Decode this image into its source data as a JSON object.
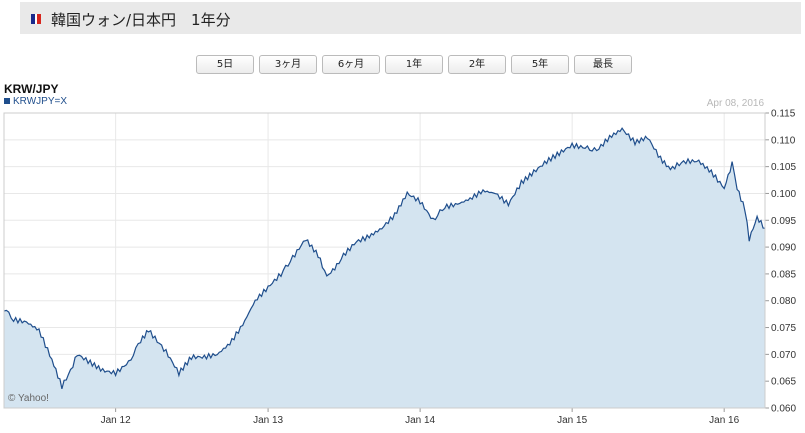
{
  "header": {
    "title": "韓国ウォン/日本円　1年分",
    "flag_colors": [
      "#1a2a8c",
      "#ffffff",
      "#d7261e"
    ]
  },
  "range_buttons": [
    "5日",
    "3ヶ月",
    "6ヶ月",
    "1年",
    "2年",
    "5年",
    "最長"
  ],
  "symbol": "KRW/JPY",
  "legend_label": "KRWJPY=X",
  "date_label": "Apr 08, 2016",
  "credit": "© Yahoo!",
  "colors": {
    "line": "#1f4e8c",
    "fill": "#d4e4f0",
    "grid": "#e8e8e8",
    "axis_text": "#333333"
  },
  "chart_data": {
    "type": "area",
    "title": "",
    "xlabel": "",
    "ylabel": "",
    "ylim": [
      0.06,
      0.115
    ],
    "y_ticks": [
      "0.060",
      "0.065",
      "0.070",
      "0.075",
      "0.080",
      "0.085",
      "0.090",
      "0.095",
      "0.100",
      "0.105",
      "0.110",
      "0.115"
    ],
    "x_ticks": [
      "Jan 12",
      "Jan 13",
      "Jan 14",
      "Jan 15",
      "Jan 16"
    ],
    "x_range": [
      "2011-04-08",
      "2016-04-08"
    ],
    "grid": true,
    "series": [
      {
        "name": "KRWJPY=X",
        "x": [
          "2011-04-08",
          "2011-05-01",
          "2011-06-01",
          "2011-07-01",
          "2011-08-01",
          "2011-08-25",
          "2011-09-15",
          "2011-10-01",
          "2011-11-01",
          "2011-12-01",
          "2012-01-01",
          "2012-02-01",
          "2012-03-01",
          "2012-03-20",
          "2012-04-15",
          "2012-05-01",
          "2012-06-01",
          "2012-07-01",
          "2012-08-01",
          "2012-09-01",
          "2012-10-01",
          "2012-11-01",
          "2012-12-01",
          "2013-01-01",
          "2013-02-01",
          "2013-03-01",
          "2013-04-01",
          "2013-05-01",
          "2013-05-22",
          "2013-06-15",
          "2013-07-01",
          "2013-08-01",
          "2013-09-01",
          "2013-10-01",
          "2013-11-01",
          "2013-12-01",
          "2014-01-01",
          "2014-02-01",
          "2014-03-01",
          "2014-04-01",
          "2014-05-01",
          "2014-06-01",
          "2014-07-01",
          "2014-08-01",
          "2014-09-01",
          "2014-10-01",
          "2014-11-01",
          "2014-12-01",
          "2015-01-01",
          "2015-02-01",
          "2015-03-01",
          "2015-04-01",
          "2015-05-01",
          "2015-06-01",
          "2015-07-01",
          "2015-08-01",
          "2015-08-25",
          "2015-09-15",
          "2015-10-01",
          "2015-11-01",
          "2015-12-01",
          "2016-01-01",
          "2016-01-20",
          "2016-02-01",
          "2016-02-20",
          "2016-03-01",
          "2016-03-20",
          "2016-04-08"
        ],
        "values": [
          0.0785,
          0.0765,
          0.076,
          0.0745,
          0.069,
          0.064,
          0.067,
          0.07,
          0.0685,
          0.067,
          0.0665,
          0.0685,
          0.0725,
          0.0745,
          0.072,
          0.0705,
          0.0665,
          0.0695,
          0.0695,
          0.07,
          0.072,
          0.0755,
          0.08,
          0.0825,
          0.085,
          0.088,
          0.0915,
          0.0885,
          0.0845,
          0.0865,
          0.0885,
          0.091,
          0.092,
          0.0935,
          0.096,
          0.1,
          0.0985,
          0.095,
          0.0975,
          0.098,
          0.099,
          0.1005,
          0.1,
          0.098,
          0.102,
          0.104,
          0.106,
          0.1075,
          0.109,
          0.1085,
          0.108,
          0.1105,
          0.112,
          0.1095,
          0.1105,
          0.1065,
          0.1045,
          0.1055,
          0.106,
          0.106,
          0.104,
          0.101,
          0.1055,
          0.101,
          0.097,
          0.0915,
          0.0955,
          0.0935
        ]
      }
    ]
  }
}
